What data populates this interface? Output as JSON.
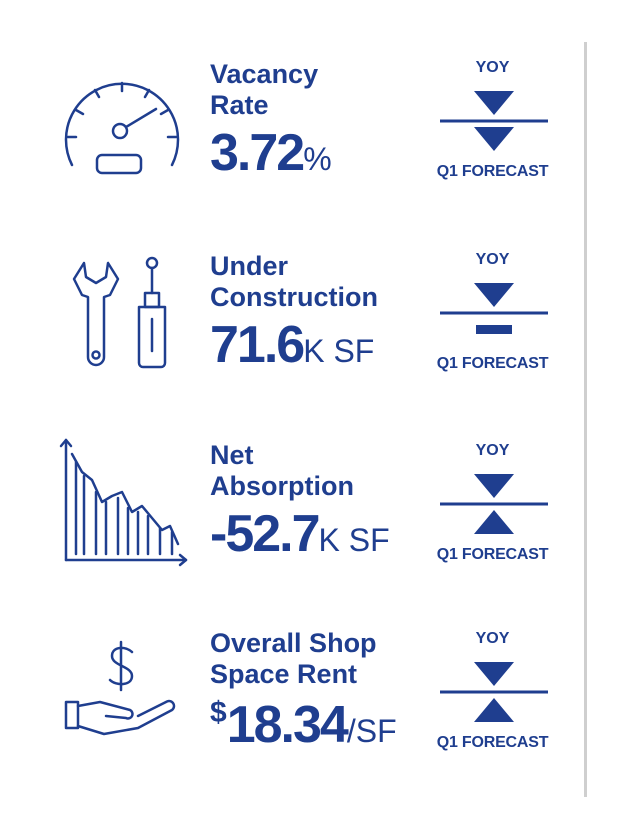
{
  "metrics": [
    {
      "id": "vacancy-rate",
      "icon": "speedometer-icon",
      "label_line1": "Vacancy",
      "label_line2": "Rate",
      "currency": "",
      "value": "3.72",
      "unit": "%",
      "yoy_label": "YOY",
      "yoy_direction": "down",
      "forecast_label": "Q1 FORECAST",
      "forecast_direction": "down"
    },
    {
      "id": "under-construction",
      "icon": "tools-icon",
      "label_line1": "Under",
      "label_line2": "Construction",
      "currency": "",
      "value": "71.6",
      "unit": "K SF",
      "yoy_label": "YOY",
      "yoy_direction": "down",
      "forecast_label": "Q1 FORECAST",
      "forecast_direction": "flat"
    },
    {
      "id": "net-absorption",
      "icon": "declining-chart-icon",
      "label_line1": "Net",
      "label_line2": "Absorption",
      "currency": "",
      "value": "-52.7",
      "unit": "K SF",
      "yoy_label": "YOY",
      "yoy_direction": "down",
      "forecast_label": "Q1 FORECAST",
      "forecast_direction": "up"
    },
    {
      "id": "shop-space-rent",
      "icon": "hand-dollar-icon",
      "label_line1": "Overall Shop",
      "label_line2": "Space Rent",
      "currency": "$",
      "value": "18.34",
      "unit": "/SF",
      "yoy_label": "YOY",
      "yoy_direction": "down",
      "forecast_label": "Q1 FORECAST",
      "forecast_direction": "up"
    }
  ],
  "colors": {
    "primary": "#1f3e8f",
    "divider": "#cfcfcf"
  }
}
